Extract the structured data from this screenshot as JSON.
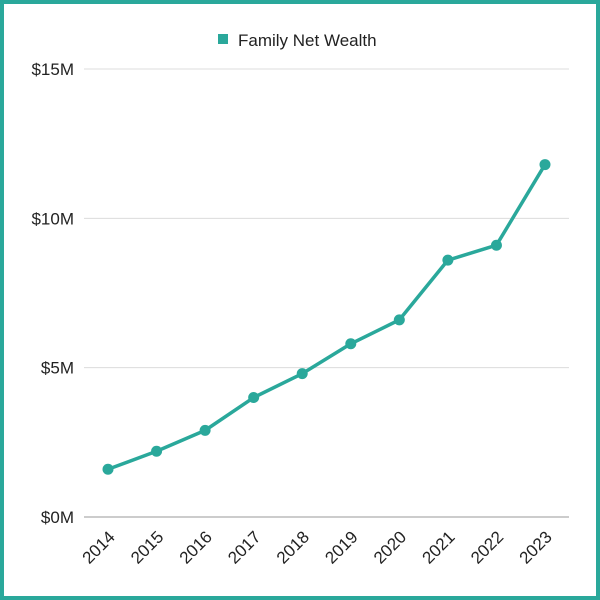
{
  "chart_data": {
    "type": "line",
    "title": "",
    "xlabel": "",
    "ylabel": "",
    "categories": [
      "2014",
      "2015",
      "2016",
      "2017",
      "2018",
      "2019",
      "2020",
      "2021",
      "2022",
      "2023"
    ],
    "series": [
      {
        "name": "Family Net Wealth",
        "values": [
          1.6,
          2.2,
          2.9,
          4.0,
          4.8,
          5.8,
          6.6,
          8.6,
          9.1,
          11.8
        ],
        "color": "#2aa89b"
      }
    ],
    "y_unit": "$M",
    "ylim": [
      0,
      15
    ],
    "y_ticks": [
      {
        "value": 0,
        "label": "$0M"
      },
      {
        "value": 5,
        "label": "$5M"
      },
      {
        "value": 10,
        "label": "$10M"
      },
      {
        "value": 15,
        "label": "$15M"
      }
    ],
    "grid": true,
    "legend_position": "top-center"
  }
}
